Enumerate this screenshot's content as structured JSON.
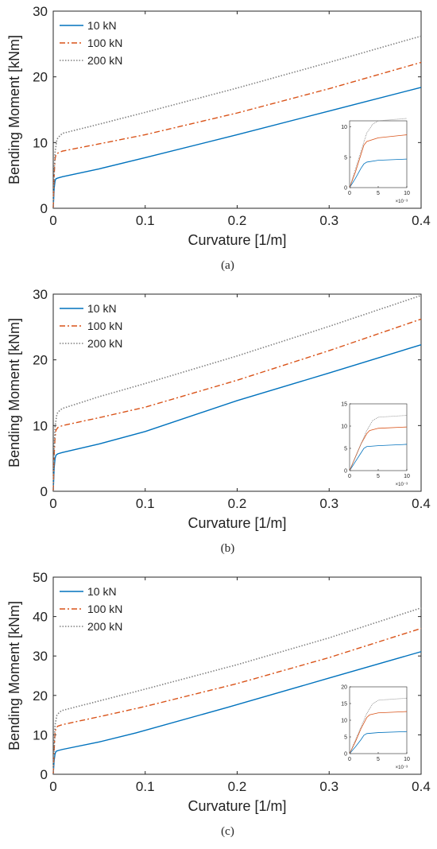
{
  "chart_data": [
    {
      "type": "line",
      "caption": "(a)",
      "xlabel": "Curvature [1/m]",
      "ylabel": "Bending Moment [kNm]",
      "xlim": [
        0,
        0.4
      ],
      "ylim": [
        0,
        30
      ],
      "xticks": [
        "0",
        "0.1",
        "0.2",
        "0.3",
        "0.4"
      ],
      "yticks": [
        "0",
        "10",
        "20",
        "30"
      ],
      "legend_position": "top-left",
      "series": [
        {
          "name": "10 kN",
          "color": "#0072BD",
          "style": "solid",
          "x": [
            0,
            0.001,
            0.002,
            0.003,
            0.005,
            0.01,
            0.05,
            0.1,
            0.2,
            0.3,
            0.4
          ],
          "y": [
            0,
            3.0,
            4.2,
            4.5,
            4.6,
            4.8,
            6.0,
            7.7,
            11.2,
            14.8,
            18.4
          ]
        },
        {
          "name": "100 kN",
          "color": "#D95319",
          "style": "dashdot",
          "x": [
            0,
            0.001,
            0.002,
            0.003,
            0.005,
            0.01,
            0.05,
            0.1,
            0.2,
            0.3,
            0.4
          ],
          "y": [
            0,
            5.0,
            7.5,
            8.2,
            8.4,
            8.7,
            9.8,
            11.2,
            14.5,
            18.2,
            22.2
          ]
        },
        {
          "name": "200 kN",
          "color": "#808080",
          "style": "dotted",
          "x": [
            0,
            0.001,
            0.002,
            0.004,
            0.007,
            0.01,
            0.05,
            0.1,
            0.2,
            0.3,
            0.4
          ],
          "y": [
            0,
            5.5,
            8.5,
            10.5,
            11.0,
            11.4,
            12.8,
            14.6,
            18.3,
            22.2,
            26.2
          ]
        }
      ],
      "inset": {
        "xlim": [
          0,
          10
        ],
        "ylim": [
          0,
          11
        ],
        "xticks": [
          "0",
          "5",
          "10"
        ],
        "yticks": [
          "0",
          "5",
          "10"
        ],
        "exponent": "×10⁻³",
        "series": [
          {
            "x": [
              0,
              1,
              2,
              2.5,
              3,
              5,
              10
            ],
            "y": [
              0,
              1.5,
              3.2,
              3.9,
              4.2,
              4.5,
              4.7
            ]
          },
          {
            "x": [
              0,
              1,
              2,
              2.5,
              3,
              5,
              10
            ],
            "y": [
              0,
              2.5,
              5.5,
              7.0,
              7.6,
              8.2,
              8.7
            ]
          },
          {
            "x": [
              0,
              1,
              2,
              3,
              4,
              5,
              10
            ],
            "y": [
              0,
              3,
              6,
              9,
              10.4,
              11,
              11.4
            ]
          }
        ]
      }
    },
    {
      "type": "line",
      "caption": "(b)",
      "xlabel": "Curvature [1/m]",
      "ylabel": "Bending Moment [kNm]",
      "xlim": [
        0,
        0.4
      ],
      "ylim": [
        0,
        30
      ],
      "xticks": [
        "0",
        "0.1",
        "0.2",
        "0.3",
        "0.4"
      ],
      "yticks": [
        "0",
        "10",
        "20",
        "30"
      ],
      "legend_position": "top-left",
      "series": [
        {
          "name": "10 kN",
          "color": "#0072BD",
          "style": "solid",
          "x": [
            0,
            0.001,
            0.002,
            0.003,
            0.005,
            0.01,
            0.05,
            0.1,
            0.2,
            0.3,
            0.4
          ],
          "y": [
            0,
            3.5,
            5.0,
            5.5,
            5.7,
            5.9,
            7.2,
            9.1,
            13.8,
            18.0,
            22.3
          ]
        },
        {
          "name": "100 kN",
          "color": "#D95319",
          "style": "dashdot",
          "x": [
            0,
            0.001,
            0.002,
            0.003,
            0.005,
            0.01,
            0.05,
            0.1,
            0.2,
            0.3,
            0.4
          ],
          "y": [
            0,
            5.5,
            8.2,
            9.3,
            9.7,
            10.0,
            11.2,
            12.8,
            16.9,
            21.4,
            26.2
          ]
        },
        {
          "name": "200 kN",
          "color": "#808080",
          "style": "dotted",
          "x": [
            0,
            0.001,
            0.002,
            0.004,
            0.007,
            0.01,
            0.05,
            0.1,
            0.2,
            0.3,
            0.4
          ],
          "y": [
            0,
            6.5,
            9.8,
            11.8,
            12.3,
            12.6,
            14.4,
            16.4,
            20.6,
            25.1,
            29.8
          ]
        }
      ],
      "inset": {
        "xlim": [
          0,
          10
        ],
        "ylim": [
          0,
          15
        ],
        "xticks": [
          "0",
          "5",
          "10"
        ],
        "yticks": [
          "0",
          "5",
          "10",
          "15"
        ],
        "exponent": "×10⁻³",
        "series": [
          {
            "x": [
              0,
              1,
              2,
              2.5,
              3,
              5,
              10
            ],
            "y": [
              0,
              2,
              4,
              5.0,
              5.4,
              5.6,
              5.9
            ]
          },
          {
            "x": [
              0,
              1,
              2,
              3,
              3.5,
              5,
              10
            ],
            "y": [
              0,
              3,
              6,
              8.3,
              9.0,
              9.5,
              9.8
            ]
          },
          {
            "x": [
              0,
              1,
              2,
              3,
              4,
              5,
              10
            ],
            "y": [
              0,
              3,
              6,
              9,
              11.2,
              12.0,
              12.4
            ]
          }
        ]
      }
    },
    {
      "type": "line",
      "caption": "(c)",
      "xlabel": "Curvature [1/m]",
      "ylabel": "Bending Moment [kNm]",
      "xlim": [
        0,
        0.4
      ],
      "ylim": [
        0,
        50
      ],
      "xticks": [
        "0",
        "0.1",
        "0.2",
        "0.3",
        "0.4"
      ],
      "yticks": [
        "0",
        "10",
        "20",
        "30",
        "40",
        "50"
      ],
      "legend_position": "top-left",
      "series": [
        {
          "name": "10 kN",
          "color": "#0072BD",
          "style": "solid",
          "x": [
            0,
            0.001,
            0.002,
            0.003,
            0.005,
            0.01,
            0.05,
            0.09,
            0.19,
            0.3,
            0.4
          ],
          "y": [
            0,
            3.5,
            5.2,
            5.8,
            6.0,
            6.3,
            8.2,
            10.5,
            17.0,
            24.4,
            31.1
          ]
        },
        {
          "name": "100 kN",
          "color": "#D95319",
          "style": "dashdot",
          "x": [
            0,
            0.001,
            0.002,
            0.003,
            0.005,
            0.01,
            0.05,
            0.1,
            0.2,
            0.3,
            0.4
          ],
          "y": [
            0,
            6.0,
            10.5,
            11.8,
            12.2,
            12.6,
            14.6,
            17.2,
            23.0,
            29.6,
            37.0
          ]
        },
        {
          "name": "200 kN",
          "color": "#808080",
          "style": "dotted",
          "x": [
            0,
            0.001,
            0.002,
            0.004,
            0.007,
            0.01,
            0.05,
            0.1,
            0.2,
            0.3,
            0.4
          ],
          "y": [
            0,
            7.0,
            12.5,
            15.0,
            15.8,
            16.2,
            18.6,
            21.6,
            27.8,
            34.6,
            42.2
          ]
        }
      ],
      "inset": {
        "xlim": [
          0,
          10
        ],
        "ylim": [
          0,
          20
        ],
        "xticks": [
          "0",
          "5",
          "10"
        ],
        "yticks": [
          "0",
          "5",
          "10",
          "15",
          "20"
        ],
        "exponent": "×10⁻³",
        "series": [
          {
            "x": [
              0,
              1,
              2,
              2.5,
              3,
              5,
              10
            ],
            "y": [
              0,
              2,
              4.2,
              5.5,
              6.0,
              6.3,
              6.6
            ]
          },
          {
            "x": [
              0,
              1,
              2,
              3,
              3.5,
              5,
              10
            ],
            "y": [
              0,
              3.5,
              7.5,
              10.8,
              11.6,
              12.2,
              12.6
            ]
          },
          {
            "x": [
              0,
              1,
              2,
              3,
              4,
              5,
              10
            ],
            "y": [
              0,
              4,
              8,
              12,
              14.8,
              16.0,
              16.6
            ]
          }
        ]
      }
    }
  ]
}
